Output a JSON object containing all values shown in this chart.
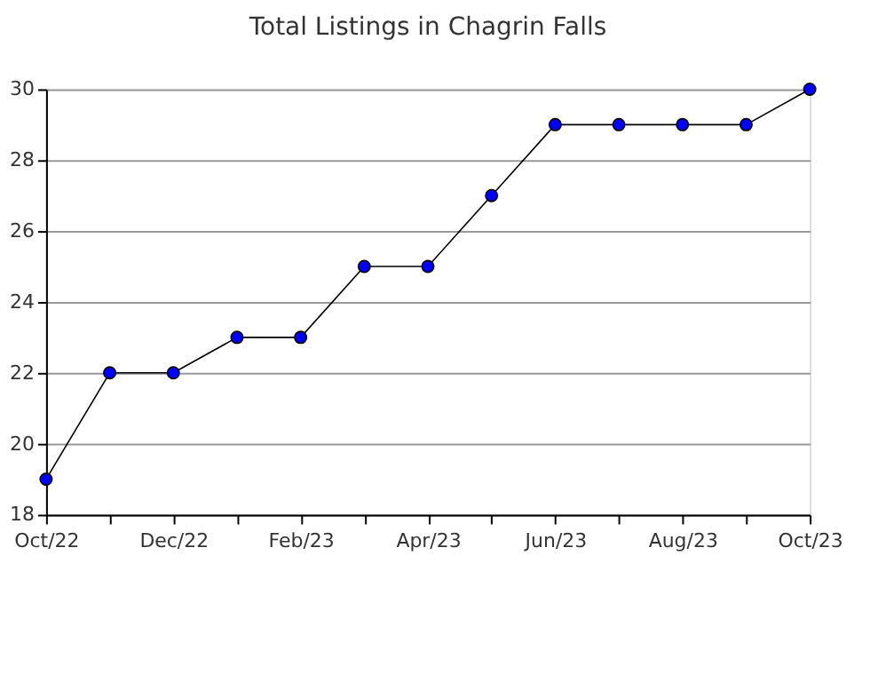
{
  "chart_data": {
    "type": "line",
    "title": "Total Listings in Chagrin Falls",
    "categories": [
      "Oct/22",
      null,
      "Dec/22",
      null,
      "Feb/23",
      null,
      "Apr/23",
      null,
      "Jun/23",
      null,
      "Aug/23",
      null,
      "Oct/23"
    ],
    "series": [
      {
        "color": "#0000ff",
        "values": [
          19,
          22,
          22,
          23,
          23,
          25,
          25,
          27,
          29,
          29,
          29,
          29,
          30
        ]
      }
    ],
    "ylim": [
      18,
      30
    ],
    "yticks": [
      18,
      20,
      22,
      24,
      26,
      28,
      30
    ],
    "grid": "y",
    "marker": "circle",
    "line_style": "solid"
  }
}
